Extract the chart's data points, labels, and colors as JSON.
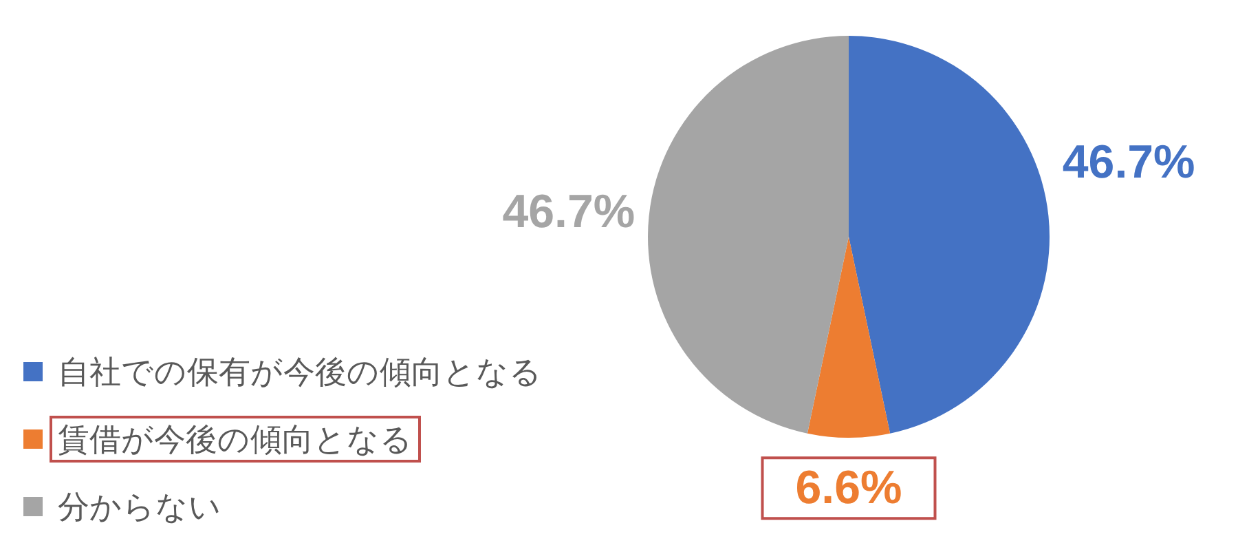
{
  "chart_data": {
    "type": "pie",
    "categories": [
      "自社での保有が今後の傾向となる",
      "賃借が今後の傾向となる",
      "分からない"
    ],
    "values": [
      46.7,
      6.6,
      46.7
    ],
    "colors": [
      "#4472c4",
      "#ed7d31",
      "#a5a5a5"
    ],
    "value_labels": [
      "46.7%",
      "6.6%",
      "46.7%"
    ],
    "legend": "bottom left"
  }
}
